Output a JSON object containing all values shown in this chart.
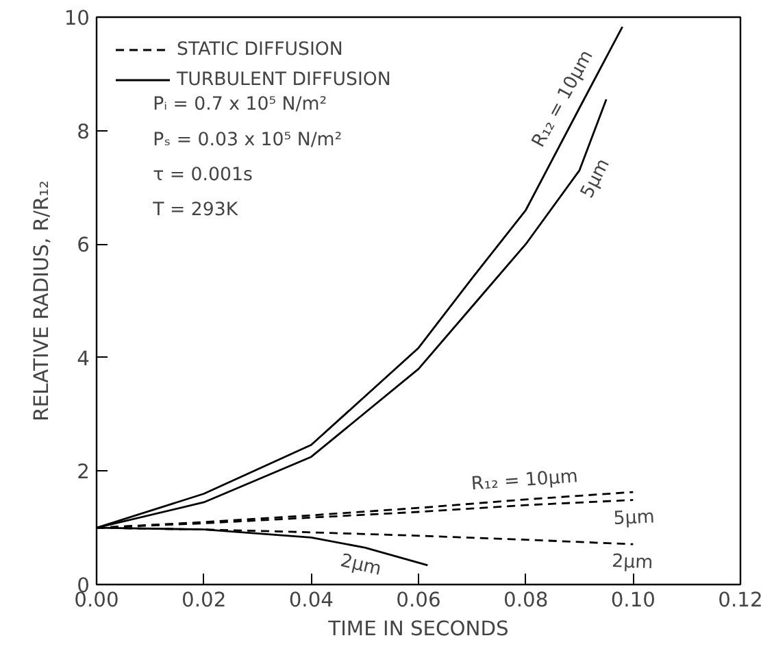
{
  "chart_data": {
    "type": "line",
    "xlabel": "TIME IN SECONDS",
    "ylabel": "RELATIVE RADIUS, R/R₁₂",
    "xlim": [
      0,
      0.12
    ],
    "ylim": [
      0,
      10
    ],
    "xticks": [
      {
        "value": 0,
        "label": "0.00"
      },
      {
        "value": 0.02,
        "label": "0.02"
      },
      {
        "value": 0.04,
        "label": "0.04"
      },
      {
        "value": 0.06,
        "label": "0.06"
      },
      {
        "value": 0.08,
        "label": "0.08"
      },
      {
        "value": 0.1,
        "label": "0.10"
      },
      {
        "value": 0.12,
        "label": "0.12"
      }
    ],
    "yticks": [
      0,
      2,
      4,
      6,
      8,
      10
    ],
    "grid": false,
    "legend": "top left",
    "series": [
      {
        "name": "STATIC DIFFUSION",
        "color": "#000000",
        "line_style": "dashed",
        "x": [
          0,
          0.02,
          0.04,
          0.06,
          0.08,
          0.1
        ],
        "values": [
          1,
          1.1,
          1.22,
          1.35,
          1.5,
          1.63
        ]
      },
      {
        "color": "#000000",
        "line_style": "dashed",
        "x": [
          0,
          0.02,
          0.04,
          0.06,
          0.08,
          0.1
        ],
        "values": [
          1,
          1.08,
          1.18,
          1.28,
          1.4,
          1.49
        ]
      },
      {
        "color": "#000000",
        "line_style": "dashed",
        "x": [
          0,
          0.02,
          0.04,
          0.06,
          0.08,
          0.1
        ],
        "values": [
          1,
          0.97,
          0.92,
          0.86,
          0.79,
          0.71
        ]
      },
      {
        "name": "TURBULENT DIFFUSION",
        "color": "#000000",
        "line_style": "solid",
        "x": [
          0,
          0.02,
          0.04,
          0.06,
          0.07,
          0.08,
          0.09,
          0.098
        ],
        "values": [
          1,
          1.6,
          2.46,
          4.17,
          5.4,
          6.6,
          8.4,
          9.83
        ]
      },
      {
        "color": "#000000",
        "line_style": "solid",
        "x": [
          0,
          0.02,
          0.04,
          0.06,
          0.07,
          0.08,
          0.09,
          0.095
        ],
        "values": [
          1,
          1.45,
          2.25,
          3.8,
          4.9,
          6.0,
          7.3,
          8.55
        ]
      },
      {
        "color": "#000000",
        "line_style": "solid",
        "x": [
          0,
          0.02,
          0.04,
          0.05,
          0.0617
        ],
        "values": [
          1,
          0.97,
          0.83,
          0.65,
          0.34
        ]
      }
    ],
    "annotations": [
      "Pᵢ = 0.7 x 10⁵ N/m²",
      "Pₛ = 0.03 x 10⁵ N/m²",
      "τ = 0.001s",
      "T = 293K",
      {
        "text": "R₁₂ = 10µm",
        "x": 0.09,
        "y": 8.4
      },
      {
        "text": "5µm",
        "x": 0.09,
        "y": 7.3
      },
      {
        "text": "R₁₂ = 10µm",
        "x": 0.08,
        "y": 1.5
      },
      {
        "text": "5µm",
        "x": 0.1,
        "y": 1.49
      },
      {
        "text": "2µm",
        "x": 0.1,
        "y": 0.71
      },
      {
        "text": "2µm",
        "x": 0.05,
        "y": 0.65
      }
    ]
  }
}
